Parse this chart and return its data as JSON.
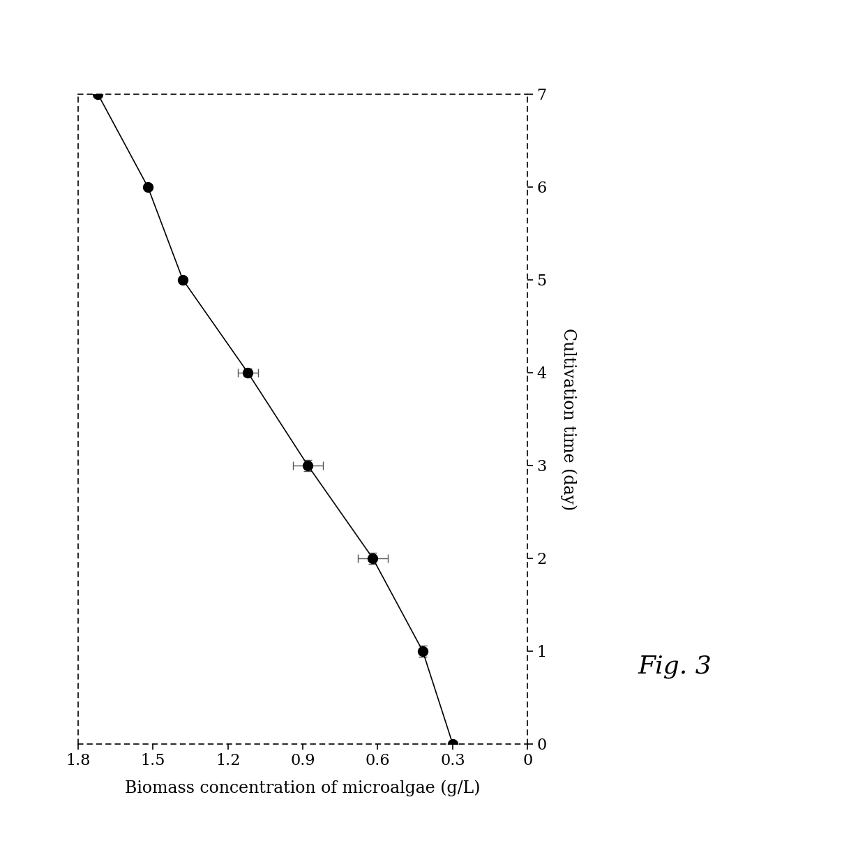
{
  "time": [
    0,
    1,
    2,
    3,
    4,
    5,
    6,
    7
  ],
  "biomass": [
    0.3,
    0.42,
    0.62,
    0.88,
    1.12,
    1.38,
    1.52,
    1.72
  ],
  "biomass_xerr": [
    0.0,
    0.0,
    0.06,
    0.06,
    0.04,
    0.0,
    0.0,
    0.0
  ],
  "time_yerr": [
    0.0,
    0.06,
    0.06,
    0.06,
    0.04,
    0.0,
    0.0,
    0.0
  ],
  "xlabel_bottom": "Biomass concentration of microalgae (g/L)",
  "ylabel_right": "Cultivation time (day)",
  "biomass_ticks": [
    0,
    0.3,
    0.6,
    0.9,
    1.2,
    1.5,
    1.8
  ],
  "time_ticks": [
    0,
    1,
    2,
    3,
    4,
    5,
    6,
    7
  ],
  "biomass_lim": [
    0,
    1.8
  ],
  "time_lim": [
    0,
    7
  ],
  "line_color": "#000000",
  "marker_color": "#000000",
  "marker_size": 10,
  "line_width": 1.2,
  "caption": "Fig. 3",
  "figsize": [
    12.4,
    12.25
  ],
  "dpi": 100,
  "background_color": "#ffffff"
}
